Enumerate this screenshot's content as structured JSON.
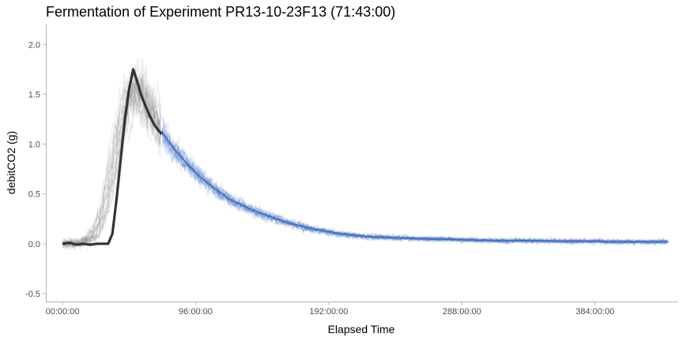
{
  "chart_data": {
    "type": "line",
    "title": "Fermentation of Experiment PR13-10-23F13 (71:43:00)",
    "xlabel": "Elapsed Time",
    "ylabel": "debitCO2 (g)",
    "x_unit": "hours",
    "xlim": [
      -12,
      444
    ],
    "ylim": [
      -0.58,
      2.2
    ],
    "x_ticks": [
      {
        "value": 0,
        "label": "00:00:00"
      },
      {
        "value": 96,
        "label": "96:00:00"
      },
      {
        "value": 192,
        "label": "192:00:00"
      },
      {
        "value": 288,
        "label": "288:00:00"
      },
      {
        "value": 384,
        "label": "384:00:00"
      }
    ],
    "y_ticks": [
      {
        "value": -0.5,
        "label": "-0.5"
      },
      {
        "value": 0,
        "label": "0.0"
      },
      {
        "value": 0.5,
        "label": "0.5"
      },
      {
        "value": 1,
        "label": "1.0"
      },
      {
        "value": 1.5,
        "label": "1.5"
      },
      {
        "value": 2,
        "label": "2.0"
      }
    ],
    "grid": false,
    "series": [
      {
        "role": "observed",
        "color": "#333333",
        "x": [
          0,
          5,
          10,
          15,
          20,
          25,
          30,
          33,
          36,
          39,
          42,
          45,
          48,
          51,
          54,
          57,
          60,
          63,
          66,
          69,
          71.7
        ],
        "y": [
          0.0,
          0.01,
          -0.01,
          0.0,
          -0.01,
          0.0,
          0.0,
          0.0,
          0.1,
          0.45,
          0.85,
          1.25,
          1.55,
          1.75,
          1.62,
          1.48,
          1.38,
          1.28,
          1.2,
          1.14,
          1.1
        ]
      },
      {
        "role": "historical-envelope",
        "color": "#666666",
        "x": [
          0,
          10,
          20,
          25,
          30,
          35,
          40,
          45,
          50,
          55,
          60,
          65,
          71.7
        ],
        "y": [
          0.0,
          0.0,
          0.05,
          0.15,
          0.35,
          0.7,
          1.05,
          1.35,
          1.55,
          1.55,
          1.42,
          1.3,
          1.15
        ]
      },
      {
        "role": "forecast",
        "color": "#3f6fbf",
        "x": [
          71.7,
          80,
          90,
          100,
          110,
          120,
          135,
          150,
          165,
          180,
          200,
          220,
          240,
          260,
          280,
          300,
          320,
          340,
          360,
          380,
          400,
          420,
          437
        ],
        "y": [
          1.12,
          0.96,
          0.8,
          0.66,
          0.55,
          0.45,
          0.35,
          0.27,
          0.2,
          0.15,
          0.1,
          0.07,
          0.06,
          0.05,
          0.045,
          0.035,
          0.03,
          0.03,
          0.025,
          0.025,
          0.02,
          0.02,
          0.02
        ]
      }
    ]
  },
  "colors": {
    "background": "#ffffff",
    "axis_line": "#b3b3b3",
    "observed": "#333333",
    "historical": "#666666",
    "forecast": "#3f6fbf"
  }
}
